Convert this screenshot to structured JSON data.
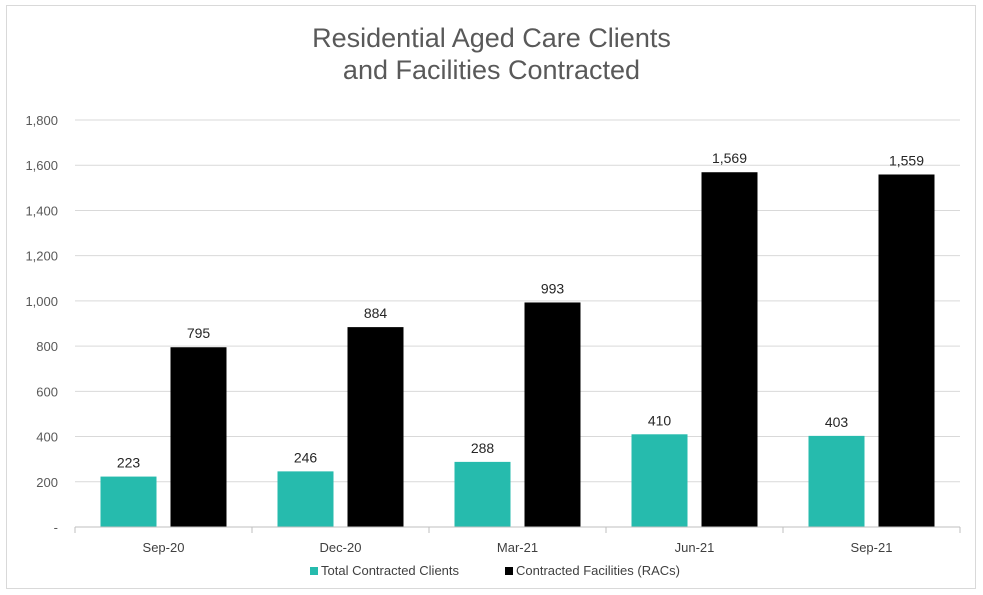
{
  "chart_data": {
    "type": "bar",
    "title": [
      "Residential Aged Care Clients",
      "and Facilities Contracted"
    ],
    "categories": [
      "Sep-20",
      "Dec-20",
      "Mar-21",
      "Jun-21",
      "Sep-21"
    ],
    "series": [
      {
        "name": "Total Contracted Clients",
        "color": "#26bbad",
        "values": [
          223,
          246,
          288,
          410,
          403
        ],
        "labels": [
          "223",
          "246",
          "288",
          "410",
          "403"
        ]
      },
      {
        "name": "Contracted Facilities (RACs)",
        "color": "#000000",
        "values": [
          795,
          884,
          993,
          1569,
          1559
        ],
        "labels": [
          "795",
          "884",
          "993",
          "1,569",
          "1,559"
        ]
      }
    ],
    "ylim": [
      0,
      1800
    ],
    "yticks": [
      {
        "value": 0,
        "label": "-"
      },
      {
        "value": 200,
        "label": "200"
      },
      {
        "value": 400,
        "label": "400"
      },
      {
        "value": 600,
        "label": "600"
      },
      {
        "value": 800,
        "label": "800"
      },
      {
        "value": 1000,
        "label": "1,000"
      },
      {
        "value": 1200,
        "label": "1,200"
      },
      {
        "value": 1400,
        "label": "1,400"
      },
      {
        "value": 1600,
        "label": "1,600"
      },
      {
        "value": 1800,
        "label": "1,800"
      }
    ],
    "grid": true,
    "legend_position": "bottom"
  }
}
